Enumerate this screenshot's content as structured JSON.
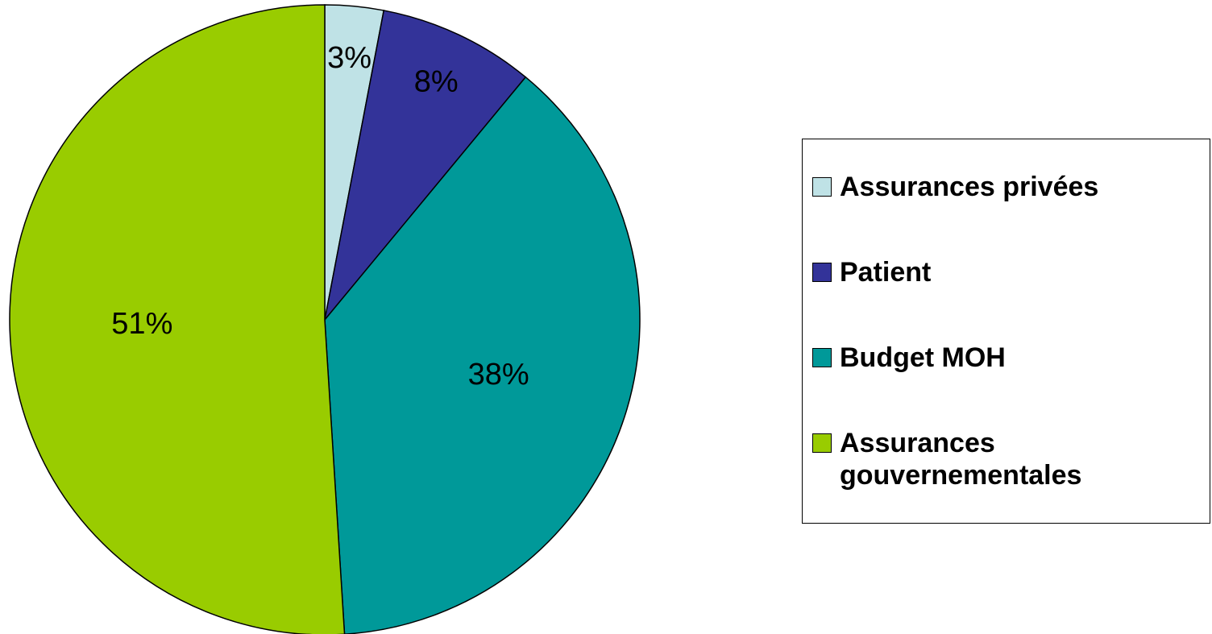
{
  "chart_data": {
    "type": "pie",
    "categories": [
      "Assurances privées",
      "Patient",
      "Budget MOH",
      "Assurances gouvernementales"
    ],
    "values": [
      3,
      8,
      38,
      51
    ],
    "value_labels": [
      "3%",
      "8%",
      "38%",
      "51%"
    ],
    "colors": [
      "#bfe2e6",
      "#333399",
      "#009999",
      "#99cc00"
    ],
    "legend": "right"
  }
}
